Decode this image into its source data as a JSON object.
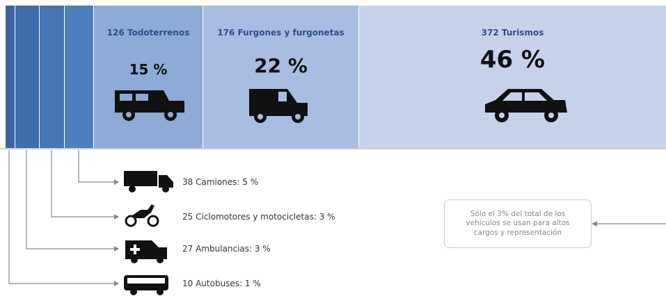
{
  "segments": [
    {
      "title": "126 Todoterrenos",
      "percent": "15 %"
    },
    {
      "title": "176 Furgones y furgonetas",
      "percent": "22 %"
    },
    {
      "title": "372 Turismos",
      "percent": "46 %"
    }
  ],
  "small_items": [
    {
      "label": "38 Camiones: 5 %"
    },
    {
      "label": "25 Ciclomotores y motocicletas: 3 %"
    },
    {
      "label": "27 Ambulancias: 3 %"
    },
    {
      "label": "10 Autobuses: 1 %"
    }
  ],
  "note": "Sólo el 3% del total de los vehículos se usan para altos cargos y representación"
}
